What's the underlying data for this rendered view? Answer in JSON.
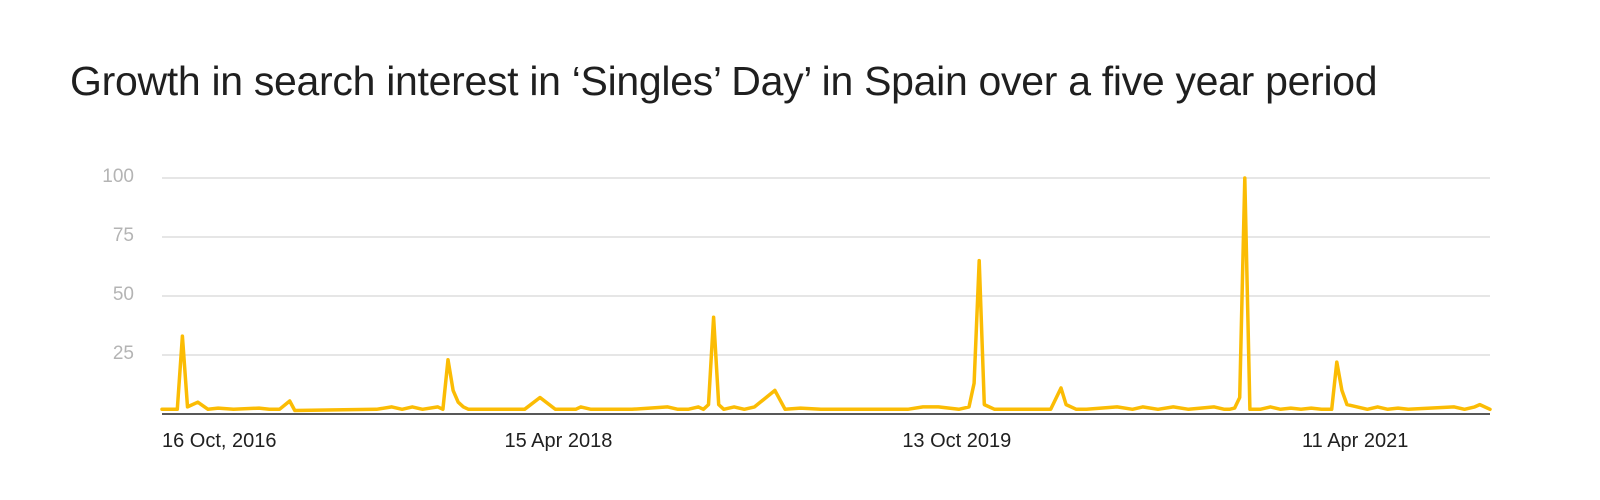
{
  "chart_data": {
    "type": "line",
    "title": "Growth in search interest in ‘Singles’ Day’ in Spain over a five year period",
    "xlabel": "",
    "ylabel": "",
    "ylim": [
      0,
      100
    ],
    "yticks": [
      "25",
      "50",
      "75",
      "100"
    ],
    "xticks": [
      {
        "date": "2016-10-16",
        "label": "16 Oct, 2016"
      },
      {
        "date": "2018-04-15",
        "label": "15 Apr 2018"
      },
      {
        "date": "2019-10-13",
        "label": "13 Oct 2019"
      },
      {
        "date": "2021-04-11",
        "label": "11 Apr 2021"
      }
    ],
    "xlim": [
      "2016-10-16",
      "2021-10-10"
    ],
    "grid": true,
    "line_color": "#fbbc04",
    "series": [
      {
        "points": [
          [
            "2016-10-16",
            2
          ],
          [
            "2016-10-30",
            2
          ],
          [
            "2016-11-06",
            2
          ],
          [
            "2016-11-13",
            33
          ],
          [
            "2016-11-20",
            3
          ],
          [
            "2016-12-04",
            5
          ],
          [
            "2016-12-18",
            2
          ],
          [
            "2017-01-01",
            2.5
          ],
          [
            "2017-01-22",
            2
          ],
          [
            "2017-02-26",
            2.5
          ],
          [
            "2017-03-12",
            2
          ],
          [
            "2017-03-26",
            2
          ],
          [
            "2017-04-09",
            5.5
          ],
          [
            "2017-04-16",
            1.5
          ],
          [
            "2017-08-06",
            2
          ],
          [
            "2017-08-27",
            3
          ],
          [
            "2017-09-10",
            2
          ],
          [
            "2017-09-24",
            3
          ],
          [
            "2017-10-08",
            2
          ],
          [
            "2017-10-29",
            3
          ],
          [
            "2017-11-05",
            2
          ],
          [
            "2017-11-12",
            23
          ],
          [
            "2017-11-19",
            10
          ],
          [
            "2017-11-26",
            5
          ],
          [
            "2017-12-03",
            3
          ],
          [
            "2017-12-10",
            2
          ],
          [
            "2018-01-14",
            2
          ],
          [
            "2018-02-25",
            2
          ],
          [
            "2018-03-18",
            7
          ],
          [
            "2018-04-08",
            2
          ],
          [
            "2018-05-06",
            2
          ],
          [
            "2018-05-13",
            3
          ],
          [
            "2018-05-27",
            2
          ],
          [
            "2018-06-24",
            2
          ],
          [
            "2018-07-22",
            2
          ],
          [
            "2018-09-09",
            3
          ],
          [
            "2018-09-23",
            2
          ],
          [
            "2018-10-07",
            2
          ],
          [
            "2018-10-21",
            3
          ],
          [
            "2018-10-28",
            2
          ],
          [
            "2018-11-04",
            4
          ],
          [
            "2018-11-11",
            41
          ],
          [
            "2018-11-18",
            4
          ],
          [
            "2018-11-25",
            2
          ],
          [
            "2018-12-09",
            3
          ],
          [
            "2018-12-23",
            2
          ],
          [
            "2019-01-06",
            3
          ],
          [
            "2019-02-03",
            10
          ],
          [
            "2019-02-17",
            2
          ],
          [
            "2019-03-10",
            2.5
          ],
          [
            "2019-04-07",
            2
          ],
          [
            "2019-08-04",
            2
          ],
          [
            "2019-08-25",
            3
          ],
          [
            "2019-09-15",
            3
          ],
          [
            "2019-10-13",
            2
          ],
          [
            "2019-10-27",
            3
          ],
          [
            "2019-11-03",
            13
          ],
          [
            "2019-11-10",
            65
          ],
          [
            "2019-11-17",
            4
          ],
          [
            "2019-12-01",
            2
          ],
          [
            "2019-12-15",
            2
          ],
          [
            "2020-01-12",
            2
          ],
          [
            "2020-02-16",
            2
          ],
          [
            "2020-03-01",
            11
          ],
          [
            "2020-03-08",
            4
          ],
          [
            "2020-03-22",
            2
          ],
          [
            "2020-04-05",
            2
          ],
          [
            "2020-05-17",
            3
          ],
          [
            "2020-06-07",
            2
          ],
          [
            "2020-06-21",
            3
          ],
          [
            "2020-07-12",
            2
          ],
          [
            "2020-08-02",
            3
          ],
          [
            "2020-08-23",
            2
          ],
          [
            "2020-09-27",
            3
          ],
          [
            "2020-10-11",
            2
          ],
          [
            "2020-10-18",
            2
          ],
          [
            "2020-10-25",
            2.5
          ],
          [
            "2020-11-01",
            7
          ],
          [
            "2020-11-08",
            100
          ],
          [
            "2020-11-15",
            2
          ],
          [
            "2020-11-29",
            2
          ],
          [
            "2020-12-13",
            3
          ],
          [
            "2020-12-27",
            2
          ],
          [
            "2021-01-10",
            2.5
          ],
          [
            "2021-01-24",
            2
          ],
          [
            "2021-02-07",
            2.5
          ],
          [
            "2021-02-21",
            2
          ],
          [
            "2021-03-07",
            2
          ],
          [
            "2021-03-14",
            22
          ],
          [
            "2021-03-21",
            10
          ],
          [
            "2021-03-28",
            4
          ],
          [
            "2021-04-11",
            3
          ],
          [
            "2021-04-25",
            2
          ],
          [
            "2021-05-09",
            3
          ],
          [
            "2021-05-23",
            2
          ],
          [
            "2021-06-06",
            2.5
          ],
          [
            "2021-06-20",
            2
          ],
          [
            "2021-08-22",
            3
          ],
          [
            "2021-09-05",
            2
          ],
          [
            "2021-09-19",
            3
          ],
          [
            "2021-09-26",
            4
          ],
          [
            "2021-10-10",
            2
          ]
        ]
      }
    ]
  }
}
